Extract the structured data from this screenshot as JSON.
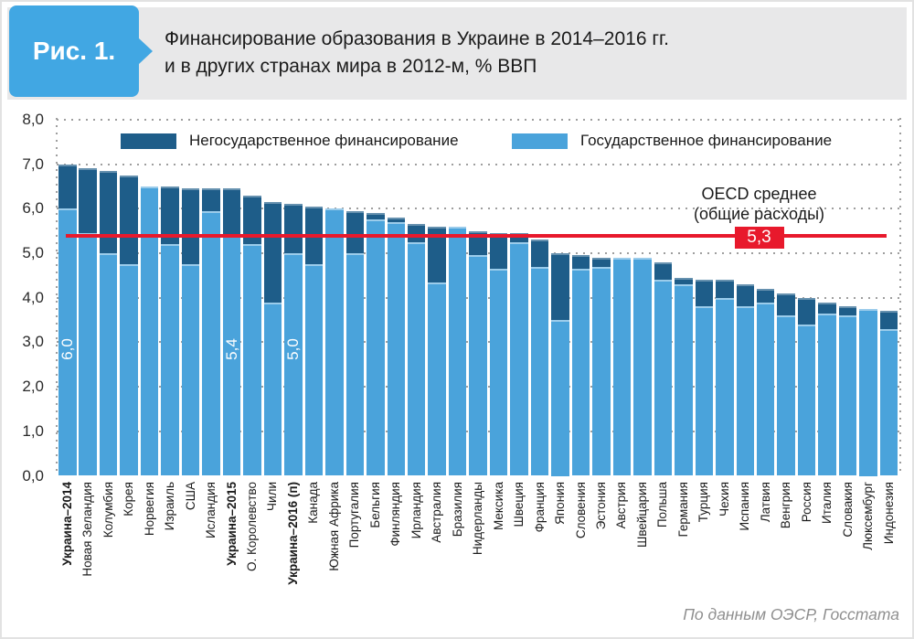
{
  "header": {
    "badge": "Рис. 1.",
    "title": "Финансирование образования в Украине в 2014–2016 гг.\nи в других странах мира в 2012-м, % ВВП"
  },
  "footer": {
    "source": "По данным ОЭСР, Госстата"
  },
  "chart_data": {
    "type": "bar",
    "stacked": true,
    "ylabel": "% ВВП",
    "ylim": [
      0,
      8
    ],
    "grid": "dotted",
    "legend_position": "top-inside",
    "colors": {
      "state": "#4AA3DB",
      "nonstate": "#1E5D89",
      "line": "#E8192C"
    },
    "yticks": [
      {
        "value": 0,
        "label": "0,0"
      },
      {
        "value": 1,
        "label": "1,0"
      },
      {
        "value": 2,
        "label": "2,0"
      },
      {
        "value": 3,
        "label": "3,0"
      },
      {
        "value": 4,
        "label": "4,0"
      },
      {
        "value": 5,
        "label": "5,0"
      },
      {
        "value": 6,
        "label": "6,0"
      },
      {
        "value": 7,
        "label": "7,0"
      },
      {
        "value": 8,
        "label": "8,0"
      }
    ],
    "legend": [
      {
        "key": "nonstate",
        "label": "Негосударственное финансирование"
      },
      {
        "key": "state",
        "label": "Государственное финансирование"
      }
    ],
    "oecd_line": {
      "title": "OECD среднее\n(общие расходы)",
      "label": "5,3",
      "value": 5.3,
      "y_value": 5.38
    },
    "bars": [
      {
        "category": "Украина–2014",
        "state": 6.0,
        "nonstate": 1.0,
        "bold": true,
        "state_label": "6,0"
      },
      {
        "category": "Новая Зеландия",
        "state": 5.45,
        "nonstate": 1.45
      },
      {
        "category": "Колумбия",
        "state": 5.0,
        "nonstate": 1.85
      },
      {
        "category": "Корея",
        "state": 4.75,
        "nonstate": 2.0
      },
      {
        "category": "Норвегия",
        "state": 6.5,
        "nonstate": 0
      },
      {
        "category": "Израиль",
        "state": 5.2,
        "nonstate": 1.3
      },
      {
        "category": "США",
        "state": 4.75,
        "nonstate": 1.7
      },
      {
        "category": "Исландия",
        "state": 5.95,
        "nonstate": 0.5
      },
      {
        "category": "Украина–2015",
        "state": 5.4,
        "nonstate": 1.05,
        "bold": true,
        "state_label": "5,4"
      },
      {
        "category": "О. Королевство",
        "state": 5.2,
        "nonstate": 1.1
      },
      {
        "category": "Чили",
        "state": 3.9,
        "nonstate": 2.25
      },
      {
        "category": "Украина–2016 (п)",
        "state": 5.0,
        "nonstate": 1.1,
        "bold": true,
        "state_label": "5,0"
      },
      {
        "category": "Канада",
        "state": 4.75,
        "nonstate": 1.3
      },
      {
        "category": "Южная Африка",
        "state": 6.0,
        "nonstate": 0
      },
      {
        "category": "Португалия",
        "state": 5.0,
        "nonstate": 0.95
      },
      {
        "category": "Бельгия",
        "state": 5.75,
        "nonstate": 0.15
      },
      {
        "category": "Финляндия",
        "state": 5.7,
        "nonstate": 0.1
      },
      {
        "category": "Ирландия",
        "state": 5.25,
        "nonstate": 0.4
      },
      {
        "category": "Австралия",
        "state": 4.35,
        "nonstate": 1.25
      },
      {
        "category": "Бразилия",
        "state": 5.6,
        "nonstate": 0
      },
      {
        "category": "Нидерланды",
        "state": 4.95,
        "nonstate": 0.55
      },
      {
        "category": "Мексика",
        "state": 4.65,
        "nonstate": 0.8
      },
      {
        "category": "Швеция",
        "state": 5.25,
        "nonstate": 0.2
      },
      {
        "category": "Франция",
        "state": 4.7,
        "nonstate": 0.6
      },
      {
        "category": "Япония",
        "state": 3.5,
        "nonstate": 1.5
      },
      {
        "category": "Словения",
        "state": 4.65,
        "nonstate": 0.3
      },
      {
        "category": "Эстония",
        "state": 4.7,
        "nonstate": 0.2
      },
      {
        "category": "Австрия",
        "state": 4.9,
        "nonstate": 0
      },
      {
        "category": "Швейцария",
        "state": 4.9,
        "nonstate": 0
      },
      {
        "category": "Польша",
        "state": 4.4,
        "nonstate": 0.4
      },
      {
        "category": "Германия",
        "state": 4.3,
        "nonstate": 0.15
      },
      {
        "category": "Турция",
        "state": 3.8,
        "nonstate": 0.6
      },
      {
        "category": "Чехия",
        "state": 4.0,
        "nonstate": 0.4
      },
      {
        "category": "Испания",
        "state": 3.8,
        "nonstate": 0.5
      },
      {
        "category": "Латвия",
        "state": 3.9,
        "nonstate": 0.3
      },
      {
        "category": "Венгрия",
        "state": 3.6,
        "nonstate": 0.5
      },
      {
        "category": "Россия",
        "state": 3.4,
        "nonstate": 0.6
      },
      {
        "category": "Италия",
        "state": 3.65,
        "nonstate": 0.25
      },
      {
        "category": "Словакия",
        "state": 3.6,
        "nonstate": 0.2
      },
      {
        "category": "Люксембург",
        "state": 3.75,
        "nonstate": 0
      },
      {
        "category": "Индонезия",
        "state": 3.3,
        "nonstate": 0.4
      }
    ]
  }
}
